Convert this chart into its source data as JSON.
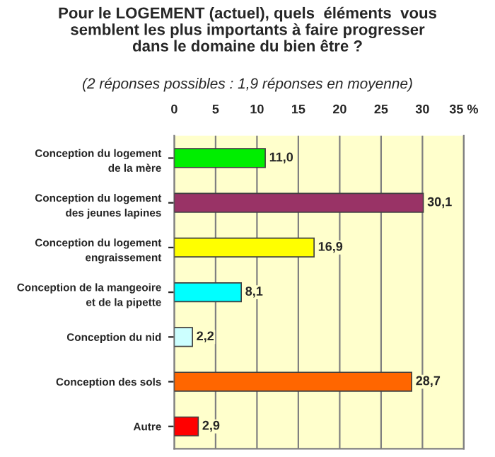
{
  "chart_data": {
    "type": "bar",
    "orientation": "horizontal",
    "title": "Pour le LOGEMENT (actuel), quels  éléments  vous\nsemblent les plus importants à faire progresser\ndans le domaine du bien être ?",
    "subtitle": "(2 réponses possibles : 1,9 réponses en moyenne)",
    "categories": [
      "Conception du logement\nde la mère",
      "Conception du logement\ndes jeunes lapines",
      "Conception du logement\nengraissement",
      "Conception de la mangeoire\net de la pipette",
      "Conception du nid",
      "Conception des sols",
      "Autre"
    ],
    "values": [
      11.0,
      30.1,
      16.9,
      8.1,
      2.2,
      28.7,
      2.9
    ],
    "value_labels": [
      "11,0",
      "30,1",
      "16,9",
      "8,1",
      "2,2",
      "28,7",
      "2,9"
    ],
    "colors": [
      "#00ee00",
      "#993366",
      "#ffff00",
      "#00ffff",
      "#ccffff",
      "#ff6600",
      "#ff0000"
    ],
    "xlim": [
      0,
      35
    ],
    "xticks": [
      0,
      5,
      10,
      15,
      20,
      25,
      30,
      {
        "value": 35,
        "label": "35 %"
      }
    ],
    "grid": "x"
  }
}
